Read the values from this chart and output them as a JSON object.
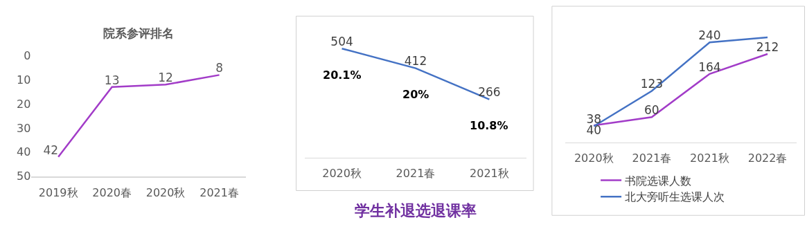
{
  "chart_data": [
    {
      "type": "line",
      "title": "院系参评排名",
      "categories": [
        "2019秋",
        "2020春",
        "2020秋",
        "2021春"
      ],
      "series": [
        {
          "color": "#a23cc8",
          "values": [
            42,
            13,
            12,
            8
          ]
        }
      ],
      "ylim": [
        50,
        0
      ],
      "yticks": [
        0,
        10,
        20,
        30,
        40,
        50
      ],
      "data_labels": true,
      "marker": "none",
      "legend": false
    },
    {
      "type": "line",
      "title": "学生补退选退课率",
      "categories": [
        "2020秋",
        "2021春",
        "2021秋"
      ],
      "series": [
        {
          "color": "#4472c4",
          "values": [
            504,
            412,
            266
          ]
        }
      ],
      "data_labels": true,
      "marker": "none",
      "legend": false,
      "tick_labels": "x",
      "annotations": [
        "20.1%",
        "20%",
        "10.8%"
      ]
    },
    {
      "type": "line",
      "categories": [
        "2020秋",
        "2021春",
        "2021秋",
        "2022春"
      ],
      "series": [
        {
          "name": "书院选课人数",
          "color": "#a23cc8",
          "values": [
            40,
            60,
            164,
            212
          ],
          "value_labels": [
            "40",
            "60",
            "164",
            "212"
          ]
        },
        {
          "name": "北大旁听生选课人次",
          "color": "#4472c4",
          "values": [
            38,
            123,
            240,
            252
          ],
          "value_labels": [
            "38",
            "123",
            "240",
            null
          ]
        }
      ],
      "marker": "none",
      "legend": "bottom",
      "tick_labels": "x"
    }
  ]
}
